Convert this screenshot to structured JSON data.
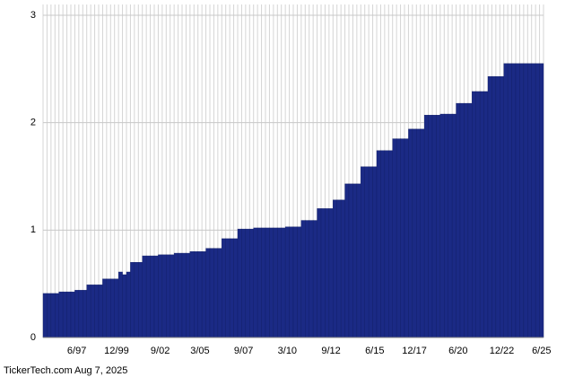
{
  "chart_data": {
    "type": "bar",
    "footer": "TickerTech.com  Aug 7, 2025",
    "color": "#1b2a85",
    "categories": [
      null,
      null,
      null,
      null,
      null,
      null,
      null,
      null,
      "6/97",
      null,
      null,
      null,
      null,
      null,
      null,
      null,
      null,
      null,
      "12/99",
      null,
      null,
      null,
      null,
      null,
      null,
      null,
      null,
      null,
      null,
      "9/02",
      null,
      null,
      null,
      null,
      null,
      null,
      null,
      null,
      null,
      "3/05",
      null,
      null,
      null,
      null,
      null,
      null,
      null,
      null,
      null,
      null,
      "9/07",
      null,
      null,
      null,
      null,
      null,
      null,
      null,
      null,
      null,
      null,
      "3/10",
      null,
      null,
      null,
      null,
      null,
      null,
      null,
      null,
      null,
      null,
      "9/12",
      null,
      null,
      null,
      null,
      null,
      null,
      null,
      null,
      null,
      null,
      "6/15",
      null,
      null,
      null,
      null,
      null,
      null,
      null,
      null,
      null,
      "12/17",
      null,
      null,
      null,
      null,
      null,
      null,
      null,
      null,
      null,
      null,
      "6/20",
      null,
      null,
      null,
      null,
      null,
      null,
      null,
      null,
      null,
      null,
      "12/22",
      null,
      null,
      null,
      null,
      null,
      null,
      null,
      null,
      null,
      "6/25"
    ],
    "values": [
      0.41,
      0.41,
      0.41,
      0.41,
      0.425,
      0.425,
      0.425,
      0.425,
      0.44,
      0.44,
      0.44,
      0.49,
      0.49,
      0.49,
      0.49,
      0.545,
      0.545,
      0.545,
      0.545,
      0.61,
      0.585,
      0.61,
      0.7,
      0.7,
      0.7,
      0.76,
      0.76,
      0.76,
      0.76,
      0.77,
      0.77,
      0.77,
      0.77,
      0.785,
      0.785,
      0.785,
      0.785,
      0.8,
      0.8,
      0.8,
      0.8,
      0.83,
      0.83,
      0.83,
      0.83,
      0.92,
      0.92,
      0.92,
      0.92,
      1.01,
      1.01,
      1.01,
      1.01,
      1.02,
      1.02,
      1.02,
      1.02,
      1.02,
      1.02,
      1.02,
      1.02,
      1.03,
      1.03,
      1.03,
      1.03,
      1.09,
      1.09,
      1.09,
      1.09,
      1.2,
      1.2,
      1.2,
      1.2,
      1.28,
      1.28,
      1.28,
      1.43,
      1.43,
      1.43,
      1.43,
      1.59,
      1.59,
      1.59,
      1.59,
      1.74,
      1.74,
      1.74,
      1.74,
      1.85,
      1.85,
      1.85,
      1.85,
      1.94,
      1.94,
      1.94,
      1.94,
      2.07,
      2.07,
      2.07,
      2.07,
      2.08,
      2.08,
      2.08,
      2.08,
      2.18,
      2.18,
      2.18,
      2.18,
      2.29,
      2.29,
      2.29,
      2.29,
      2.43,
      2.43,
      2.43,
      2.43,
      2.55,
      2.55,
      2.55,
      2.55,
      2.55,
      2.55,
      2.55,
      2.55,
      2.55,
      2.55
    ],
    "ylim": [
      0,
      3.1
    ],
    "yticks": [
      0,
      1,
      2,
      3
    ],
    "grid": true
  }
}
